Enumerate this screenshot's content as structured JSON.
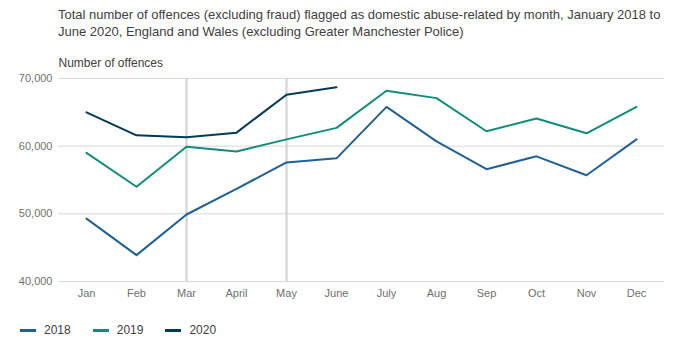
{
  "chart_data": {
    "type": "line",
    "title": "Total number of offences (excluding fraud) flagged as domestic abuse-related by month, January 2018 to June 2020, England and Wales (excluding Greater Manchester Police)",
    "y_label": "Number of offences",
    "categories": [
      "Jan",
      "Feb",
      "Mar",
      "April",
      "May",
      "June",
      "July",
      "Aug",
      "Sep",
      "Oct",
      "Nov",
      "Dec"
    ],
    "series": [
      {
        "name": "2018",
        "color": "#206095",
        "values": [
          49300,
          43900,
          49900,
          53700,
          57600,
          58200,
          65800,
          60700,
          56600,
          58500,
          55700,
          61000
        ]
      },
      {
        "name": "2019",
        "color": "#118c7b",
        "values": [
          59000,
          54000,
          59900,
          59200,
          61000,
          62700,
          68200,
          67100,
          62200,
          64100,
          61900,
          65800
        ]
      },
      {
        "name": "2020",
        "color": "#003c57",
        "values": [
          65000,
          61600,
          61300,
          62000,
          67600,
          68700,
          null,
          null,
          null,
          null,
          null,
          null
        ]
      }
    ],
    "reference_lines": [
      "Mar",
      "May"
    ],
    "ylim": [
      40000,
      70000
    ],
    "yticks": [
      {
        "value": 40000,
        "label": "40,000"
      },
      {
        "value": 50000,
        "label": "50,000"
      },
      {
        "value": 60000,
        "label": "60,000"
      },
      {
        "value": 70000,
        "label": "70,000"
      }
    ],
    "grid": true,
    "legend": "bottom"
  }
}
